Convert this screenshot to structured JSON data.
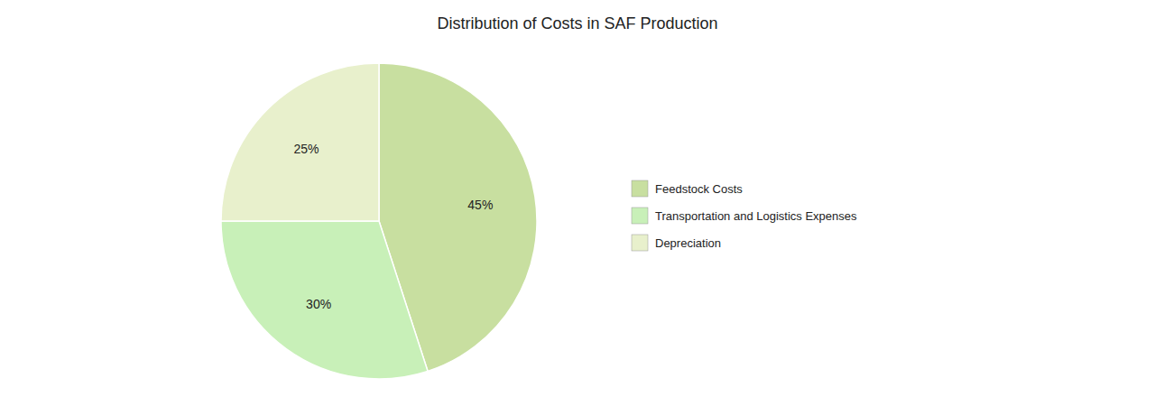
{
  "chart_data": {
    "type": "pie",
    "title": "Distribution of Costs in SAF Production",
    "categories": [
      "Feedstock Costs",
      "Transportation and Logistics Expenses",
      "Depreciation"
    ],
    "values": [
      45,
      30,
      25
    ],
    "value_labels": [
      "45%",
      "30%",
      "25%"
    ],
    "colors": [
      "#c8dfa0",
      "#c8f0b8",
      "#e8f0cc"
    ],
    "data_labels": true,
    "legend": "right"
  }
}
